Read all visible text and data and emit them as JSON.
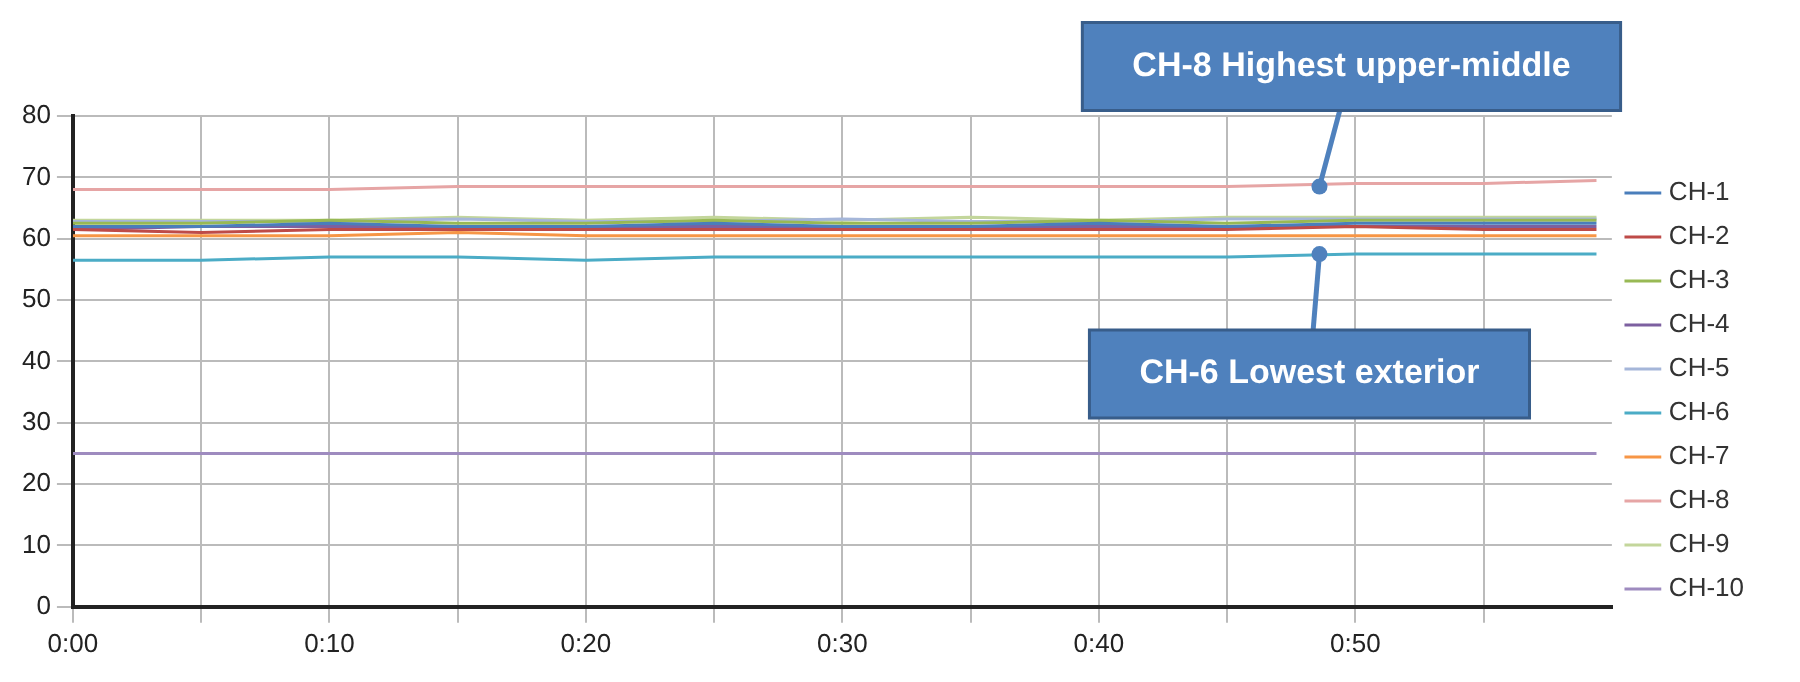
{
  "chart_data": {
    "type": "line",
    "x": [
      0,
      0.0833,
      0.1667,
      0.25,
      0.3333,
      0.4167,
      0.5,
      0.5833,
      0.6667,
      0.75,
      0.8333,
      0.9167,
      0.99
    ],
    "series": [
      {
        "name": "CH-1",
        "color": "#4a7ebb",
        "values": [
          62,
          62,
          62.5,
          62,
          62,
          62.5,
          62,
          62,
          62.5,
          62,
          62.5,
          62.5,
          62.5
        ]
      },
      {
        "name": "CH-2",
        "color": "#be4b48",
        "values": [
          61.5,
          61,
          61.5,
          61.5,
          61.5,
          61.5,
          61.5,
          61.5,
          61.5,
          61.5,
          62,
          61.5,
          61.5
        ]
      },
      {
        "name": "CH-3",
        "color": "#98b954",
        "values": [
          62.5,
          62.5,
          63,
          62.5,
          62.5,
          63,
          62.5,
          62.5,
          63,
          62.5,
          63,
          63,
          63
        ]
      },
      {
        "name": "CH-4",
        "color": "#7d60a0",
        "values": [
          61.5,
          62,
          62,
          62,
          62,
          62,
          62,
          62,
          62,
          62,
          62,
          62,
          62
        ]
      },
      {
        "name": "CH-5",
        "color": "#a5b6d9",
        "values": [
          62.8,
          62.8,
          62.8,
          63.2,
          62.8,
          62.8,
          63.2,
          62.8,
          62.8,
          63.2,
          63.2,
          63.2,
          63.2
        ]
      },
      {
        "name": "CH-6",
        "color": "#4bacc6",
        "values": [
          56.5,
          56.5,
          57,
          57,
          56.5,
          57,
          57,
          57,
          57,
          57,
          57.5,
          57.5,
          57.5
        ]
      },
      {
        "name": "CH-7",
        "color": "#f79646",
        "values": [
          60.5,
          60.5,
          60.5,
          61,
          60.5,
          60.5,
          60.5,
          60.5,
          60.5,
          60.5,
          60.5,
          60.5,
          60.5
        ]
      },
      {
        "name": "CH-8",
        "color": "#e6a5a5",
        "values": [
          68,
          68,
          68,
          68.5,
          68.5,
          68.5,
          68.5,
          68.5,
          68.5,
          68.5,
          69,
          69,
          69.5
        ]
      },
      {
        "name": "CH-9",
        "color": "#c3d69b",
        "values": [
          63,
          63,
          63,
          63.5,
          63,
          63.5,
          63,
          63.5,
          63,
          63.5,
          63.5,
          63.5,
          63.5
        ]
      },
      {
        "name": "CH-10",
        "color": "#9e8bbf",
        "values": [
          25,
          25,
          25,
          25,
          25,
          25,
          25,
          25,
          25,
          25,
          25,
          25,
          25
        ]
      }
    ],
    "xlim": [
      0,
      1
    ],
    "xticks": [
      {
        "value": 0,
        "label": "0:00"
      },
      {
        "value": 0.0833,
        "label": null
      },
      {
        "value": 0.1667,
        "label": "0:10"
      },
      {
        "value": 0.25,
        "label": null
      },
      {
        "value": 0.3333,
        "label": "0:20"
      },
      {
        "value": 0.4167,
        "label": null
      },
      {
        "value": 0.5,
        "label": "0:30"
      },
      {
        "value": 0.5833,
        "label": null
      },
      {
        "value": 0.6667,
        "label": "0:40"
      },
      {
        "value": 0.75,
        "label": null
      },
      {
        "value": 0.8333,
        "label": "0:50"
      },
      {
        "value": 0.9167,
        "label": null
      }
    ],
    "ylim": [
      0,
      80
    ],
    "yticks": [
      0,
      10,
      20,
      30,
      40,
      50,
      60,
      70,
      80
    ],
    "grid": true,
    "legend": "right",
    "marker": "none",
    "line_style": "solid",
    "annotations": [
      {
        "text": "CH-8 Highest upper-middle",
        "x": 0.81,
        "y": 68.5
      },
      {
        "text": "CH-6 Lowest exterior",
        "x": 0.81,
        "y": 57.5
      }
    ]
  }
}
